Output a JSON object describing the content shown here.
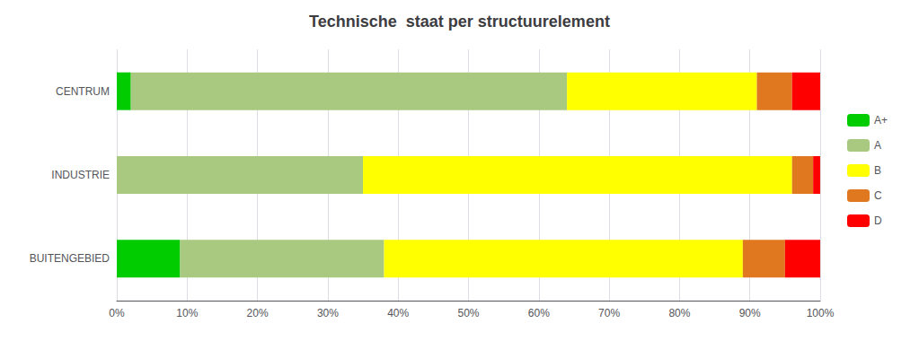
{
  "chart_data": {
    "type": "bar",
    "orientation": "horizontal",
    "stacked": true,
    "title": "Technische  staat per structuurelement",
    "categories": [
      "BUITENGEBIED",
      "INDUSTRIE",
      "CENTRUM"
    ],
    "series": [
      {
        "name": "A+",
        "color": "#00cc00",
        "values": [
          9,
          0,
          2
        ]
      },
      {
        "name": "A",
        "color": "#a8c97f",
        "values": [
          29,
          35,
          62
        ]
      },
      {
        "name": "B",
        "color": "#ffff00",
        "values": [
          51,
          61,
          27
        ]
      },
      {
        "name": "C",
        "color": "#e07820",
        "values": [
          6,
          3,
          5
        ]
      },
      {
        "name": "D",
        "color": "#ff0000",
        "values": [
          5,
          1,
          4
        ]
      }
    ],
    "xlim": [
      0,
      100
    ],
    "xticks": [
      {
        "value": 0,
        "label": "0%"
      },
      {
        "value": 10,
        "label": "10%"
      },
      {
        "value": 20,
        "label": "20%"
      },
      {
        "value": 30,
        "label": "30%"
      },
      {
        "value": 40,
        "label": "40%"
      },
      {
        "value": 50,
        "label": "50%"
      },
      {
        "value": 60,
        "label": "60%"
      },
      {
        "value": 70,
        "label": "70%"
      },
      {
        "value": 80,
        "label": "80%"
      },
      {
        "value": 90,
        "label": "90%"
      },
      {
        "value": 100,
        "label": "100%"
      }
    ],
    "grid": true,
    "legend": "right"
  }
}
